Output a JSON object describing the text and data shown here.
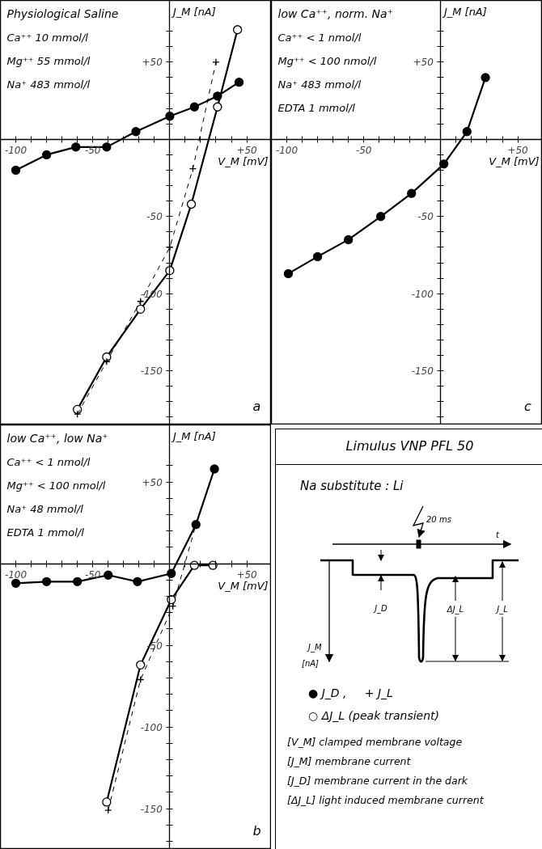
{
  "chart_data": [
    {
      "type": "line",
      "title": "Physiological Saline",
      "annotations": [
        "Ca⁺⁺   10 mmol/l",
        "Mg⁺⁺   55 mmol/l",
        "Na⁺  483 mmol/l",
        "a"
      ],
      "xlabel": "V_M [mV]",
      "ylabel": "J_M [nA]",
      "xlim": [
        -110,
        66
      ],
      "ylim": [
        -185,
        90
      ],
      "xticks": [
        -100,
        {
          "value": -90,
          "label": null
        },
        {
          "value": -80,
          "label": null
        },
        {
          "value": -70,
          "label": null
        },
        {
          "value": -60,
          "label": null
        },
        -50,
        {
          "value": -40,
          "label": null
        },
        {
          "value": -30,
          "label": null
        },
        {
          "value": -20,
          "label": null
        },
        {
          "value": -10,
          "label": null
        },
        {
          "value": 0,
          "label": null
        },
        {
          "value": 10,
          "label": null
        },
        {
          "value": 20,
          "label": null
        },
        {
          "value": 30,
          "label": null
        },
        {
          "value": 40,
          "label": null
        },
        {
          "value": 50,
          "label": "+50"
        }
      ],
      "yticks": [
        {
          "value": -180,
          "label": null
        },
        {
          "value": -170,
          "label": null
        },
        {
          "value": -160,
          "label": null
        },
        -150,
        {
          "value": -140,
          "label": null
        },
        {
          "value": -130,
          "label": null
        },
        {
          "value": -120,
          "label": null
        },
        {
          "value": -110,
          "label": null
        },
        -100,
        {
          "value": -90,
          "label": null
        },
        {
          "value": -80,
          "label": null
        },
        {
          "value": -70,
          "label": null
        },
        {
          "value": -60,
          "label": null
        },
        -50,
        {
          "value": -40,
          "label": null
        },
        {
          "value": -30,
          "label": null
        },
        {
          "value": -20,
          "label": null
        },
        {
          "value": -10,
          "label": null
        },
        {
          "value": 0,
          "label": null
        },
        {
          "value": 10,
          "label": null
        },
        {
          "value": 20,
          "label": null
        },
        {
          "value": 30,
          "label": null
        },
        {
          "value": 40,
          "label": null
        },
        {
          "value": 50,
          "label": "+50"
        },
        {
          "value": 60,
          "label": null
        },
        {
          "value": 70,
          "label": null
        }
      ],
      "series": [
        {
          "color": "#000000",
          "marker": "circle",
          "line_style": "solid",
          "x": [
            -100,
            -80,
            -61,
            -41,
            -22,
            0,
            16,
            31,
            45
          ],
          "values": [
            -20,
            -10,
            -5,
            -5,
            5,
            15,
            21,
            28,
            37
          ]
        },
        {
          "color": "#000000",
          "marker": "none",
          "line_style": "solid",
          "x": [
            -60,
            -41,
            -19,
            0,
            14,
            31,
            44
          ],
          "values": [
            -175,
            -141,
            -110,
            -85,
            -42,
            21,
            71
          ]
        },
        {
          "type": "scatter",
          "color": "#ffffff",
          "marker": "circle",
          "x": [
            -60,
            -41,
            -19,
            0,
            14,
            31,
            44
          ],
          "values": [
            -175,
            -141,
            -110,
            -85,
            -42,
            21,
            71
          ]
        },
        {
          "color": "#000000",
          "marker": "cross",
          "line_style": "dashed",
          "x": [
            -60,
            -41,
            -19,
            0,
            15,
            30
          ],
          "values": [
            -178,
            -144,
            -105,
            -70,
            -19,
            50
          ]
        }
      ]
    },
    {
      "type": "line",
      "title": "low Ca⁺⁺, norm. Na⁺",
      "annotations": [
        "Ca⁺⁺   < 1 nmol/l",
        "Mg⁺⁺ < 100 nmol/l",
        "Na⁺  483 mmol/l",
        "EDTA   1 mmol/l",
        "c"
      ],
      "xlabel": "V_M [mV]",
      "ylabel": "J_M [nA]",
      "xlim": [
        -110,
        66
      ],
      "ylim": [
        -185,
        90
      ],
      "xticks": [
        -100,
        {
          "value": -90,
          "label": null
        },
        {
          "value": -80,
          "label": null
        },
        {
          "value": -70,
          "label": null
        },
        {
          "value": -60,
          "label": null
        },
        -50,
        {
          "value": -40,
          "label": null
        },
        {
          "value": -30,
          "label": null
        },
        {
          "value": -20,
          "label": null
        },
        {
          "value": -10,
          "label": null
        },
        {
          "value": 0,
          "label": null
        },
        {
          "value": 10,
          "label": null
        },
        {
          "value": 20,
          "label": null
        },
        {
          "value": 30,
          "label": null
        },
        {
          "value": 40,
          "label": null
        },
        {
          "value": 50,
          "label": "+50"
        }
      ],
      "yticks": [
        {
          "value": -180,
          "label": null
        },
        {
          "value": -170,
          "label": null
        },
        {
          "value": -160,
          "label": null
        },
        -150,
        {
          "value": -140,
          "label": null
        },
        {
          "value": -130,
          "label": null
        },
        {
          "value": -120,
          "label": null
        },
        {
          "value": -110,
          "label": null
        },
        -100,
        {
          "value": -90,
          "label": null
        },
        {
          "value": -80,
          "label": null
        },
        {
          "value": -70,
          "label": null
        },
        {
          "value": -60,
          "label": null
        },
        -50,
        {
          "value": -40,
          "label": null
        },
        {
          "value": -30,
          "label": null
        },
        {
          "value": -20,
          "label": null
        },
        {
          "value": -10,
          "label": null
        },
        {
          "value": 0,
          "label": null
        },
        {
          "value": 10,
          "label": null
        },
        {
          "value": 20,
          "label": null
        },
        {
          "value": 30,
          "label": null
        },
        {
          "value": 40,
          "label": null
        },
        {
          "value": 50,
          "label": "+50"
        },
        {
          "value": 60,
          "label": null
        },
        {
          "value": 70,
          "label": null
        }
      ],
      "series": [
        {
          "color": "#000000",
          "marker": "circle",
          "line_style": "solid",
          "x": [
            -99,
            -80,
            -60,
            -39,
            -19,
            2,
            17,
            29
          ],
          "values": [
            -87,
            -76,
            -65,
            -50,
            -35,
            -16,
            5,
            40
          ]
        }
      ]
    },
    {
      "type": "line",
      "title": "low Ca⁺⁺, low Na⁺",
      "annotations": [
        "Ca⁺⁺   < 1 nmol/l",
        "Mg⁺⁺ < 100 nmol/l",
        "Na⁺    48 mmol/l",
        "EDTA   1 mmol/l",
        "b"
      ],
      "xlabel": "V_M [mV]",
      "ylabel": "J_M [nA]",
      "xlim": [
        -110,
        66
      ],
      "ylim": [
        -175,
        85
      ],
      "xticks": [
        -100,
        {
          "value": -90,
          "label": null
        },
        {
          "value": -80,
          "label": null
        },
        {
          "value": -70,
          "label": null
        },
        {
          "value": -60,
          "label": null
        },
        -50,
        {
          "value": -40,
          "label": null
        },
        {
          "value": -30,
          "label": null
        },
        {
          "value": -20,
          "label": null
        },
        {
          "value": -10,
          "label": null
        },
        {
          "value": 0,
          "label": null
        },
        {
          "value": 10,
          "label": null
        },
        {
          "value": 20,
          "label": null
        },
        {
          "value": 30,
          "label": null
        },
        {
          "value": 40,
          "label": null
        },
        {
          "value": 50,
          "label": "+50"
        }
      ],
      "yticks": [
        {
          "value": -170,
          "label": null
        },
        {
          "value": -160,
          "label": null
        },
        -150,
        {
          "value": -140,
          "label": null
        },
        {
          "value": -130,
          "label": null
        },
        {
          "value": -120,
          "label": null
        },
        {
          "value": -110,
          "label": null
        },
        -100,
        {
          "value": -90,
          "label": null
        },
        {
          "value": -80,
          "label": null
        },
        {
          "value": -70,
          "label": null
        },
        {
          "value": -60,
          "label": null
        },
        -50,
        {
          "value": -40,
          "label": null
        },
        {
          "value": -30,
          "label": null
        },
        {
          "value": -20,
          "label": null
        },
        {
          "value": -10,
          "label": null
        },
        {
          "value": 0,
          "label": null
        },
        {
          "value": 10,
          "label": null
        },
        {
          "value": 20,
          "label": null
        },
        {
          "value": 30,
          "label": null
        },
        {
          "value": 40,
          "label": null
        },
        {
          "value": 50,
          "label": "+50"
        },
        {
          "value": 60,
          "label": null
        }
      ],
      "series": [
        {
          "color": "#000000",
          "marker": "circle",
          "line_style": "solid",
          "x": [
            -100,
            -80,
            -60,
            -40,
            -21,
            1,
            17,
            29
          ],
          "values": [
            -12,
            -11,
            -11,
            -7,
            -11,
            -6,
            24,
            58
          ]
        },
        {
          "color": "#000000",
          "marker": "none",
          "line_style": "solid",
          "x": [
            -41,
            -19,
            1,
            16,
            28
          ],
          "values": [
            -146,
            -62,
            -22,
            -1,
            -1
          ]
        },
        {
          "type": "scatter",
          "color": "#ffffff",
          "marker": "circle",
          "x": [
            -41,
            -19,
            1,
            16,
            28
          ],
          "values": [
            -146,
            -62,
            -22,
            -1,
            -1
          ]
        },
        {
          "color": "#000000",
          "marker": "cross",
          "line_style": "dashed",
          "x": [
            -40,
            -19,
            2,
            17,
            29
          ],
          "values": [
            -151,
            -71,
            -26,
            24,
            58
          ]
        }
      ]
    },
    {
      "type": "other",
      "title": "Limulus   VNP   PFL   50",
      "annotations": [
        "Na substitute : Li",
        "20 ms",
        "t",
        "J_D",
        "ΔJ_L",
        "J_L",
        "J_M",
        "[nA]",
        "● J_D ,",
        "+ J_L",
        "○ ΔJ_L (peak transient)",
        "[V_M] clamped membrane voltage",
        "[J_M] membrane current",
        "[J_D] membrane current in the dark",
        "[ΔJ_L] light induced membrane current"
      ]
    }
  ]
}
